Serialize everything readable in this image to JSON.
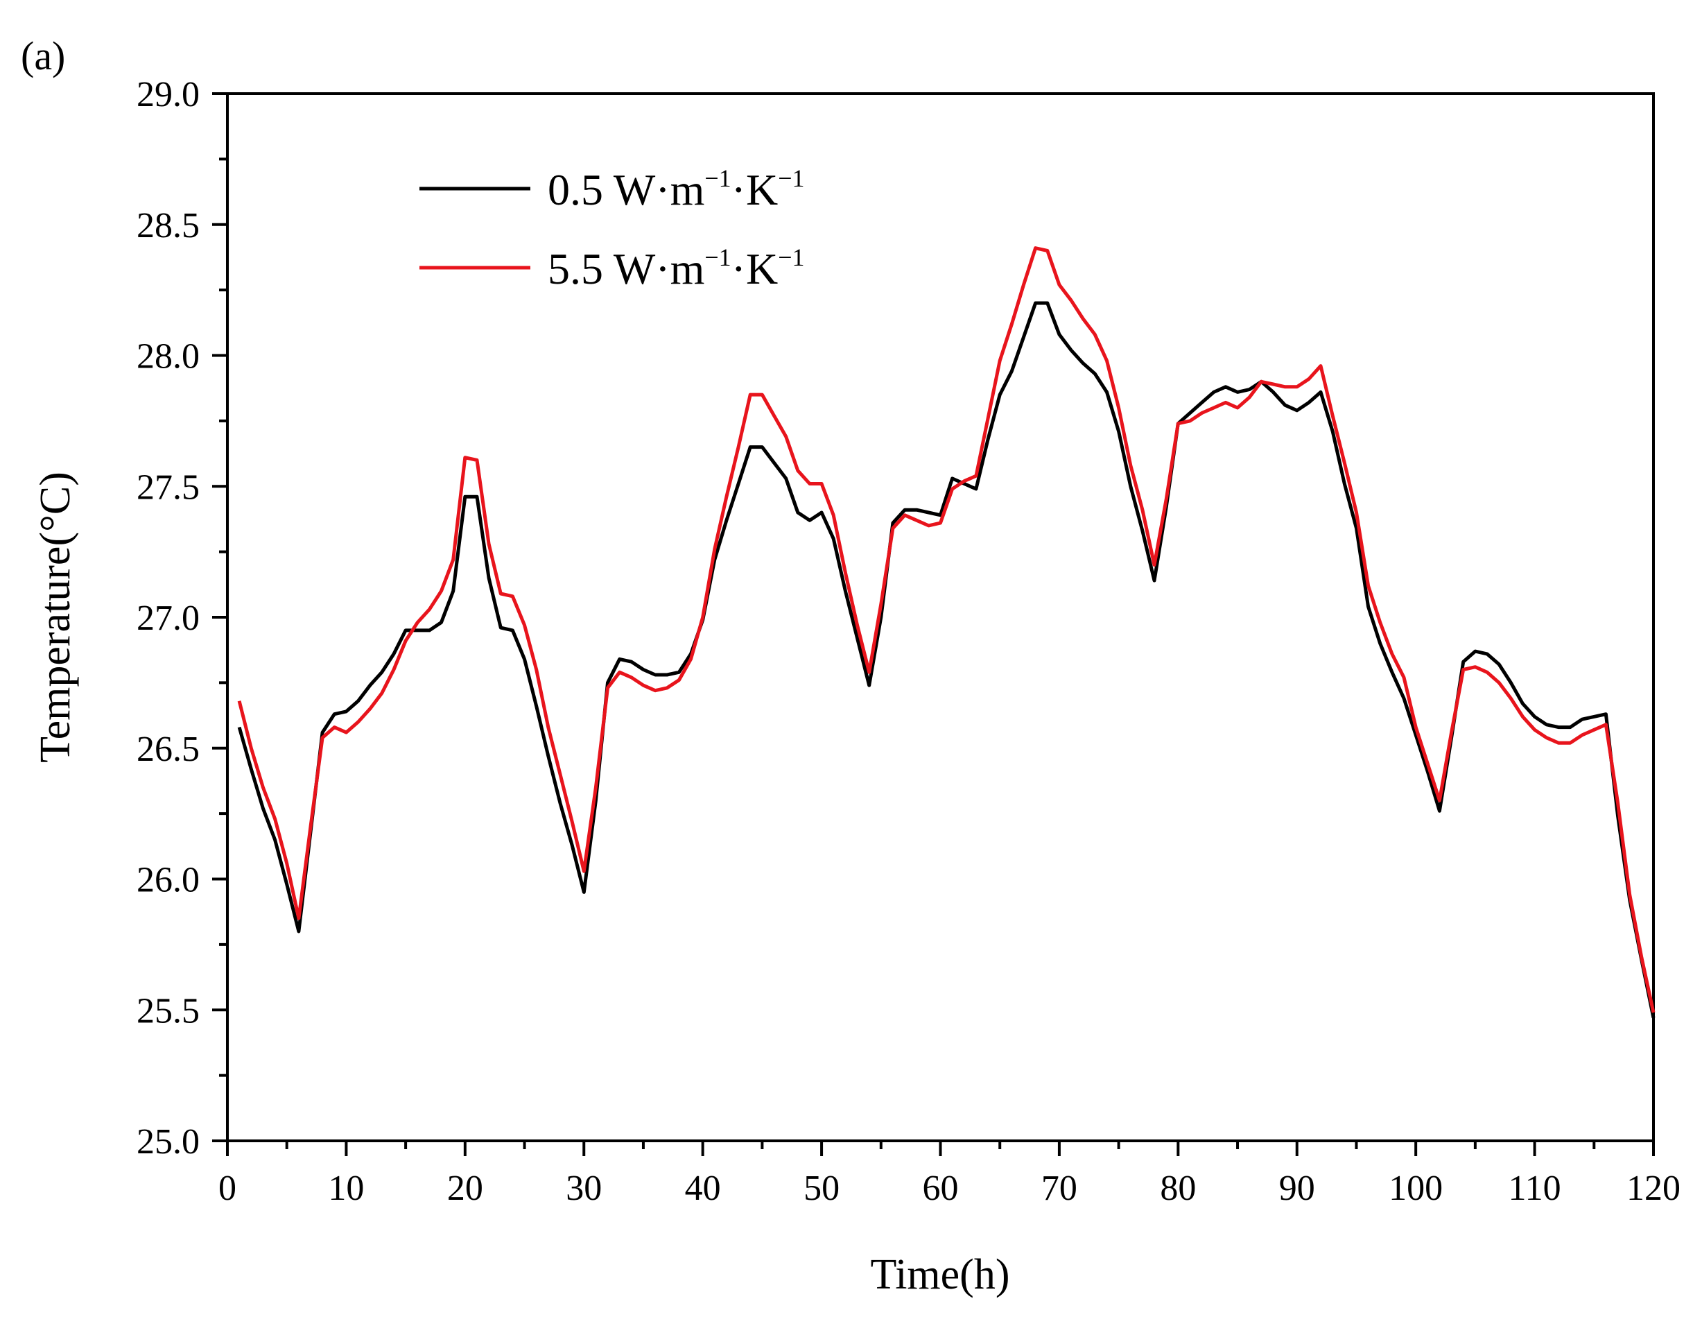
{
  "panel_label": "(a)",
  "chart_data": {
    "type": "line",
    "title": "",
    "xlabel": "Time(h)",
    "ylabel": "Temperature(°C)",
    "xlim": [
      0,
      120
    ],
    "ylim": [
      25.0,
      29.0
    ],
    "x_ticks": [
      0,
      10,
      20,
      30,
      40,
      50,
      60,
      70,
      80,
      90,
      100,
      110,
      120
    ],
    "x_tick_labels": [
      "0",
      "10",
      "20",
      "30",
      "40",
      "50",
      "60",
      "70",
      "80",
      "90",
      "100",
      "110",
      "120"
    ],
    "y_ticks": [
      25.0,
      25.5,
      26.0,
      26.5,
      27.0,
      27.5,
      28.0,
      28.5,
      29.0
    ],
    "y_tick_labels": [
      "25.0",
      "25.5",
      "26.0",
      "26.5",
      "27.0",
      "27.5",
      "28.0",
      "28.5",
      "29.0"
    ],
    "legend_position": "top-left",
    "grid": false,
    "series": [
      {
        "name": "0.5 W·m−1·K−1",
        "label_main": "0.5 W·m",
        "label_sup1": "−1",
        "label_mid": "·K",
        "label_sup2": "−1",
        "color": "#000000",
        "x": [
          1,
          2,
          3,
          4,
          5,
          6,
          7,
          8,
          9,
          10,
          11,
          12,
          13,
          14,
          15,
          16,
          17,
          18,
          19,
          20,
          21,
          22,
          23,
          24,
          25,
          26,
          27,
          28,
          29,
          30,
          31,
          32,
          33,
          34,
          35,
          36,
          37,
          38,
          39,
          40,
          41,
          42,
          43,
          44,
          45,
          46,
          47,
          48,
          49,
          50,
          51,
          52,
          53,
          54,
          55,
          56,
          57,
          58,
          59,
          60,
          61,
          62,
          63,
          64,
          65,
          66,
          67,
          68,
          69,
          70,
          71,
          72,
          73,
          74,
          75,
          76,
          77,
          78,
          79,
          80,
          81,
          82,
          83,
          84,
          85,
          86,
          87,
          88,
          89,
          90,
          91,
          92,
          93,
          94,
          95,
          96,
          97,
          98,
          99,
          100,
          101,
          102,
          103,
          104,
          105,
          106,
          107,
          108,
          109,
          110,
          111,
          112,
          113,
          114,
          115,
          116,
          117,
          118,
          119,
          120
        ],
        "y": [
          26.58,
          26.42,
          26.27,
          26.15,
          25.98,
          25.8,
          26.18,
          26.56,
          26.63,
          26.64,
          26.68,
          26.74,
          26.79,
          26.86,
          26.95,
          26.95,
          26.95,
          26.98,
          27.1,
          27.46,
          27.46,
          27.15,
          26.96,
          26.95,
          26.84,
          26.66,
          26.47,
          26.29,
          26.13,
          25.95,
          26.3,
          26.75,
          26.84,
          26.83,
          26.8,
          26.78,
          26.78,
          26.79,
          26.86,
          26.99,
          27.22,
          27.37,
          27.51,
          27.65,
          27.65,
          27.59,
          27.53,
          27.4,
          27.37,
          27.4,
          27.3,
          27.1,
          26.92,
          26.74,
          27.0,
          27.36,
          27.41,
          27.41,
          27.4,
          27.39,
          27.53,
          27.51,
          27.49,
          27.68,
          27.85,
          27.94,
          28.07,
          28.2,
          28.2,
          28.08,
          28.02,
          27.97,
          27.93,
          27.86,
          27.71,
          27.5,
          27.33,
          27.14,
          27.42,
          27.74,
          27.78,
          27.82,
          27.86,
          27.88,
          27.86,
          27.87,
          27.9,
          27.86,
          27.81,
          27.79,
          27.82,
          27.86,
          27.71,
          27.51,
          27.34,
          27.04,
          26.9,
          26.79,
          26.69,
          26.55,
          26.41,
          26.26,
          26.54,
          26.83,
          26.87,
          26.86,
          26.82,
          26.75,
          26.67,
          26.62,
          26.59,
          26.58,
          26.58,
          26.61,
          26.62,
          26.63,
          26.24,
          25.92,
          25.69,
          25.47
        ]
      },
      {
        "name": "5.5 W·m−1·K−1",
        "label_main": "5.5 W·m",
        "label_sup1": "−1",
        "label_mid": "·K",
        "label_sup2": "−1",
        "color": "#e8141c",
        "x": [
          1,
          2,
          3,
          4,
          5,
          6,
          7,
          8,
          9,
          10,
          11,
          12,
          13,
          14,
          15,
          16,
          17,
          18,
          19,
          20,
          21,
          22,
          23,
          24,
          25,
          26,
          27,
          28,
          29,
          30,
          31,
          32,
          33,
          34,
          35,
          36,
          37,
          38,
          39,
          40,
          41,
          42,
          43,
          44,
          45,
          46,
          47,
          48,
          49,
          50,
          51,
          52,
          53,
          54,
          55,
          56,
          57,
          58,
          59,
          60,
          61,
          62,
          63,
          64,
          65,
          66,
          67,
          68,
          69,
          70,
          71,
          72,
          73,
          74,
          75,
          76,
          77,
          78,
          79,
          80,
          81,
          82,
          83,
          84,
          85,
          86,
          87,
          88,
          89,
          90,
          91,
          92,
          93,
          94,
          95,
          96,
          97,
          98,
          99,
          100,
          101,
          102,
          103,
          104,
          105,
          106,
          107,
          108,
          109,
          110,
          111,
          112,
          113,
          114,
          115,
          116,
          117,
          118,
          119,
          120
        ],
        "y": [
          26.68,
          26.5,
          26.35,
          26.23,
          26.06,
          25.85,
          26.2,
          26.54,
          26.58,
          26.56,
          26.6,
          26.65,
          26.71,
          26.8,
          26.91,
          26.98,
          27.03,
          27.1,
          27.22,
          27.61,
          27.6,
          27.28,
          27.09,
          27.08,
          26.97,
          26.8,
          26.58,
          26.4,
          26.22,
          26.03,
          26.35,
          26.73,
          26.79,
          26.77,
          26.74,
          26.72,
          26.73,
          26.76,
          26.84,
          27.0,
          27.26,
          27.46,
          27.65,
          27.85,
          27.85,
          27.77,
          27.69,
          27.56,
          27.51,
          27.51,
          27.39,
          27.17,
          26.97,
          26.79,
          27.05,
          27.34,
          27.39,
          27.37,
          27.35,
          27.36,
          27.49,
          27.52,
          27.54,
          27.76,
          27.98,
          28.12,
          28.27,
          28.41,
          28.4,
          28.27,
          28.21,
          28.14,
          28.08,
          27.98,
          27.8,
          27.58,
          27.41,
          27.2,
          27.45,
          27.74,
          27.75,
          27.78,
          27.8,
          27.82,
          27.8,
          27.84,
          27.9,
          27.89,
          27.88,
          27.88,
          27.91,
          27.96,
          27.77,
          27.59,
          27.4,
          27.12,
          26.98,
          26.86,
          26.77,
          26.58,
          26.44,
          26.3,
          26.56,
          26.8,
          26.81,
          26.79,
          26.75,
          26.69,
          26.62,
          26.57,
          26.54,
          26.52,
          26.52,
          26.55,
          26.57,
          26.59,
          26.29,
          25.94,
          25.7,
          25.49
        ]
      }
    ]
  }
}
